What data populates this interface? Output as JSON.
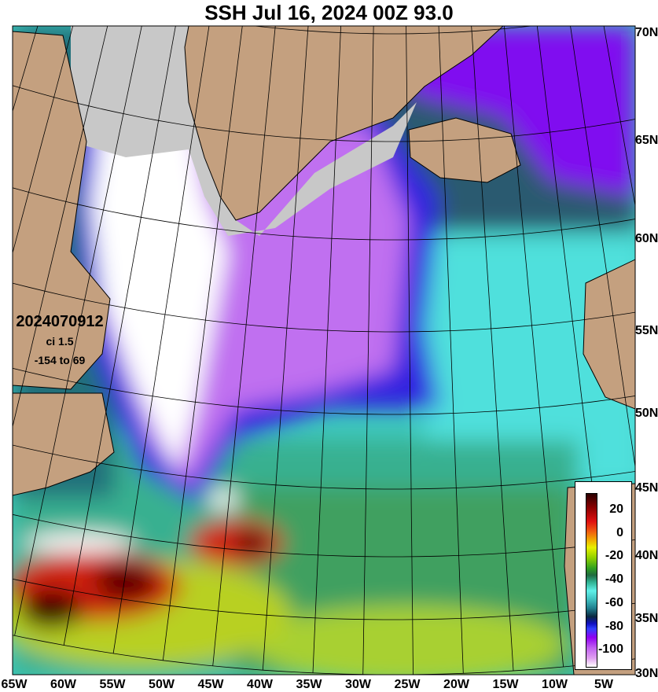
{
  "title": "SSH Jul 16, 2024 00Z 93.0",
  "info": {
    "run": "2024070912",
    "ci": "ci 1.5",
    "range": "-154 to 69"
  },
  "lat_labels": [
    "70N",
    "65N",
    "60N",
    "55N",
    "50N",
    "45N",
    "40N",
    "35N",
    "30N"
  ],
  "lon_labels": [
    "65W",
    "60W",
    "55W",
    "50W",
    "45W",
    "40W",
    "35W",
    "30W",
    "25W",
    "20W",
    "15W",
    "10W",
    "5W"
  ],
  "colorbar": {
    "labels": [
      "20",
      "0",
      "-20",
      "-40",
      "-60",
      "-80",
      "-100"
    ]
  },
  "colors": {
    "land": "#c4a07f",
    "ice": "#c8c8c8",
    "grid": "#000000"
  }
}
